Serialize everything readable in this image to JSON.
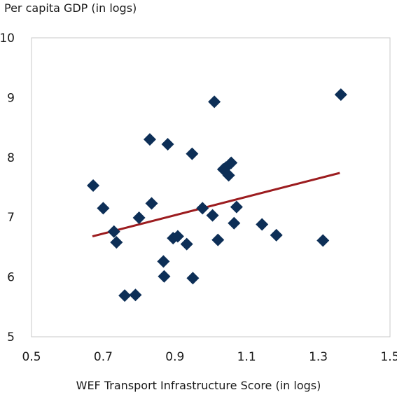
{
  "chart_data": {
    "type": "scatter",
    "ylabel": "Per capita GDP (in logs)",
    "xlabel": "WEF Transport Infrastructure Score (in logs)",
    "xlim": [
      0.5,
      1.5
    ],
    "ylim": [
      5,
      10
    ],
    "x_ticks": [
      "0.5",
      "0.7",
      "0.9",
      "1.1",
      "1.3",
      "1.5"
    ],
    "y_ticks": [
      "5",
      "6",
      "7",
      "8",
      "9",
      "10"
    ],
    "grid": false,
    "colors": {
      "points": "#0d2f57",
      "trend": "#9c1c1f",
      "frame": "#c8c8c8"
    },
    "points": [
      [
        0.672,
        7.53
      ],
      [
        0.7,
        7.15
      ],
      [
        0.73,
        6.76
      ],
      [
        0.737,
        6.58
      ],
      [
        0.76,
        5.69
      ],
      [
        0.79,
        5.7
      ],
      [
        0.8,
        6.99
      ],
      [
        0.83,
        8.3
      ],
      [
        0.835,
        7.23
      ],
      [
        0.868,
        6.26
      ],
      [
        0.87,
        6.01
      ],
      [
        0.88,
        8.22
      ],
      [
        0.895,
        6.65
      ],
      [
        0.908,
        6.68
      ],
      [
        0.933,
        6.55
      ],
      [
        0.948,
        8.06
      ],
      [
        0.95,
        5.98
      ],
      [
        0.977,
        7.15
      ],
      [
        1.005,
        7.03
      ],
      [
        1.01,
        8.93
      ],
      [
        1.02,
        6.62
      ],
      [
        1.035,
        7.8
      ],
      [
        1.042,
        7.83
      ],
      [
        1.05,
        7.7
      ],
      [
        1.057,
        7.91
      ],
      [
        1.065,
        6.9
      ],
      [
        1.072,
        7.17
      ],
      [
        1.143,
        6.88
      ],
      [
        1.183,
        6.7
      ],
      [
        1.313,
        6.61
      ],
      [
        1.363,
        9.05
      ]
    ],
    "trendline": {
      "x": [
        0.67,
        1.36
      ],
      "y": [
        6.68,
        7.74
      ]
    }
  }
}
